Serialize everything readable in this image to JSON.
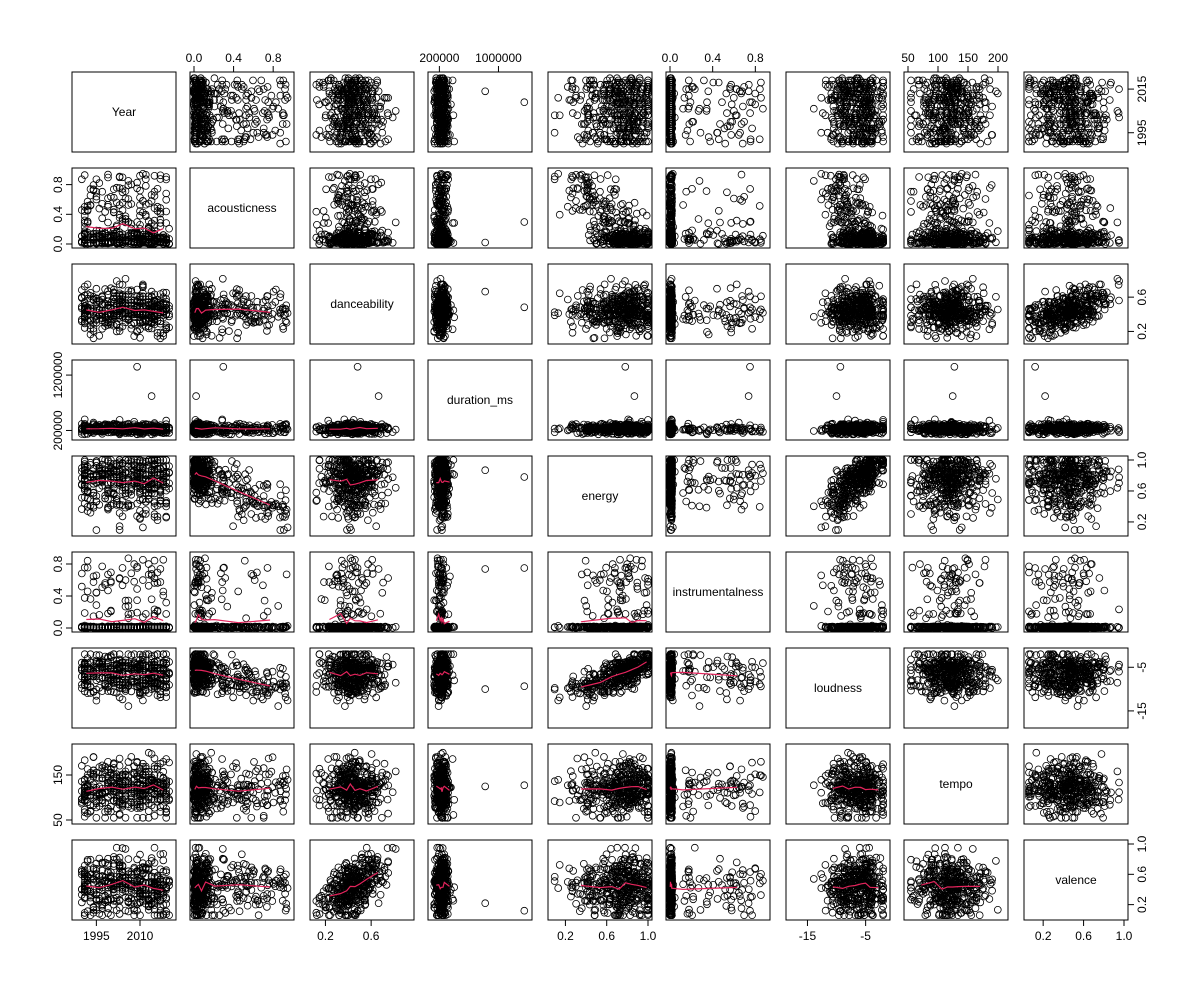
{
  "chart_data": {
    "type": "scatter",
    "subtype": "pairs-matrix",
    "variables": [
      "Year",
      "acousticness",
      "danceability",
      "duration_ms",
      "energy",
      "instrumentalness",
      "loudness",
      "tempo",
      "valence"
    ],
    "ranges": {
      "Year": [
        1988,
        2021
      ],
      "acousticness": [
        0,
        0.97
      ],
      "danceability": [
        0.1,
        0.94
      ],
      "duration_ms": [
        100000,
        1400000
      ],
      "energy": [
        0.07,
        1.0
      ],
      "instrumentalness": [
        0,
        0.9
      ],
      "loudness": [
        -18,
        -1.5
      ],
      "tempo": [
        50,
        210
      ],
      "valence": [
        0.05,
        1.0
      ]
    },
    "axis_ticks": {
      "Year": [
        {
          "v": 1995,
          "t": "1995"
        },
        {
          "v": 2010,
          "t": "2010"
        },
        {
          "v": 2015,
          "t": "2015"
        }
      ],
      "acousticness": [
        {
          "v": 0.0,
          "t": "0.0"
        },
        {
          "v": 0.4,
          "t": "0.4"
        },
        {
          "v": 0.8,
          "t": "0.8"
        }
      ],
      "danceability": [
        {
          "v": 0.2,
          "t": "0.2"
        },
        {
          "v": 0.6,
          "t": "0.6"
        }
      ],
      "duration_ms": [
        {
          "v": 200000,
          "t": "200000"
        },
        {
          "v": 1000000,
          "t": "1000000"
        },
        {
          "v": 1200000,
          "t": "1200000"
        }
      ],
      "energy": [
        {
          "v": 0.2,
          "t": "0.2"
        },
        {
          "v": 0.6,
          "t": "0.6"
        },
        {
          "v": 1.0,
          "t": "1.0"
        }
      ],
      "instrumentalness": [
        {
          "v": 0.0,
          "t": "0.0"
        },
        {
          "v": 0.4,
          "t": "0.4"
        },
        {
          "v": 0.8,
          "t": "0.8"
        }
      ],
      "loudness": [
        {
          "v": -15,
          "t": "-15"
        },
        {
          "v": -5,
          "t": "-5"
        }
      ],
      "tempo": [
        {
          "v": 50,
          "t": "50"
        },
        {
          "v": 100,
          "t": "100"
        },
        {
          "v": 150,
          "t": "150"
        },
        {
          "v": 200,
          "t": "200"
        }
      ],
      "valence": [
        {
          "v": 0.2,
          "t": "0.2"
        },
        {
          "v": 0.6,
          "t": "0.6"
        },
        {
          "v": 1.0,
          "t": "1.0"
        }
      ]
    },
    "axis_ticks_left": {
      "tempo": [
        {
          "v": 50,
          "t": "50"
        },
        {
          "v": 150,
          "t": "150"
        }
      ]
    },
    "axis_ticks_right": {
      "Year": [
        {
          "v": 1995,
          "t": "1995"
        },
        {
          "v": 2015,
          "t": "2015"
        }
      ]
    },
    "axis_ticks_bottom": {
      "valence": [
        {
          "v": 0.2,
          "t": "0.2"
        },
        {
          "v": 0.6,
          "t": "0.6"
        },
        {
          "v": 1.0,
          "t": "1.0"
        }
      ]
    },
    "axis_ticks_top": {
      "duration_ms": [
        {
          "v": 200000,
          "t": "200000"
        },
        {
          "v": 1000000,
          "t": "1000000"
        }
      ]
    },
    "axis_ticks_left_override": {
      "duration_ms": [
        {
          "v": 200000,
          "t": "200000"
        },
        {
          "v": 1200000,
          "t": "1200000"
        }
      ]
    },
    "smooth_lines": "lower-panels",
    "point_style": "open-circle",
    "colors": {
      "points": "#000000",
      "smooth": "#e3245c"
    },
    "n_points": 420
  }
}
